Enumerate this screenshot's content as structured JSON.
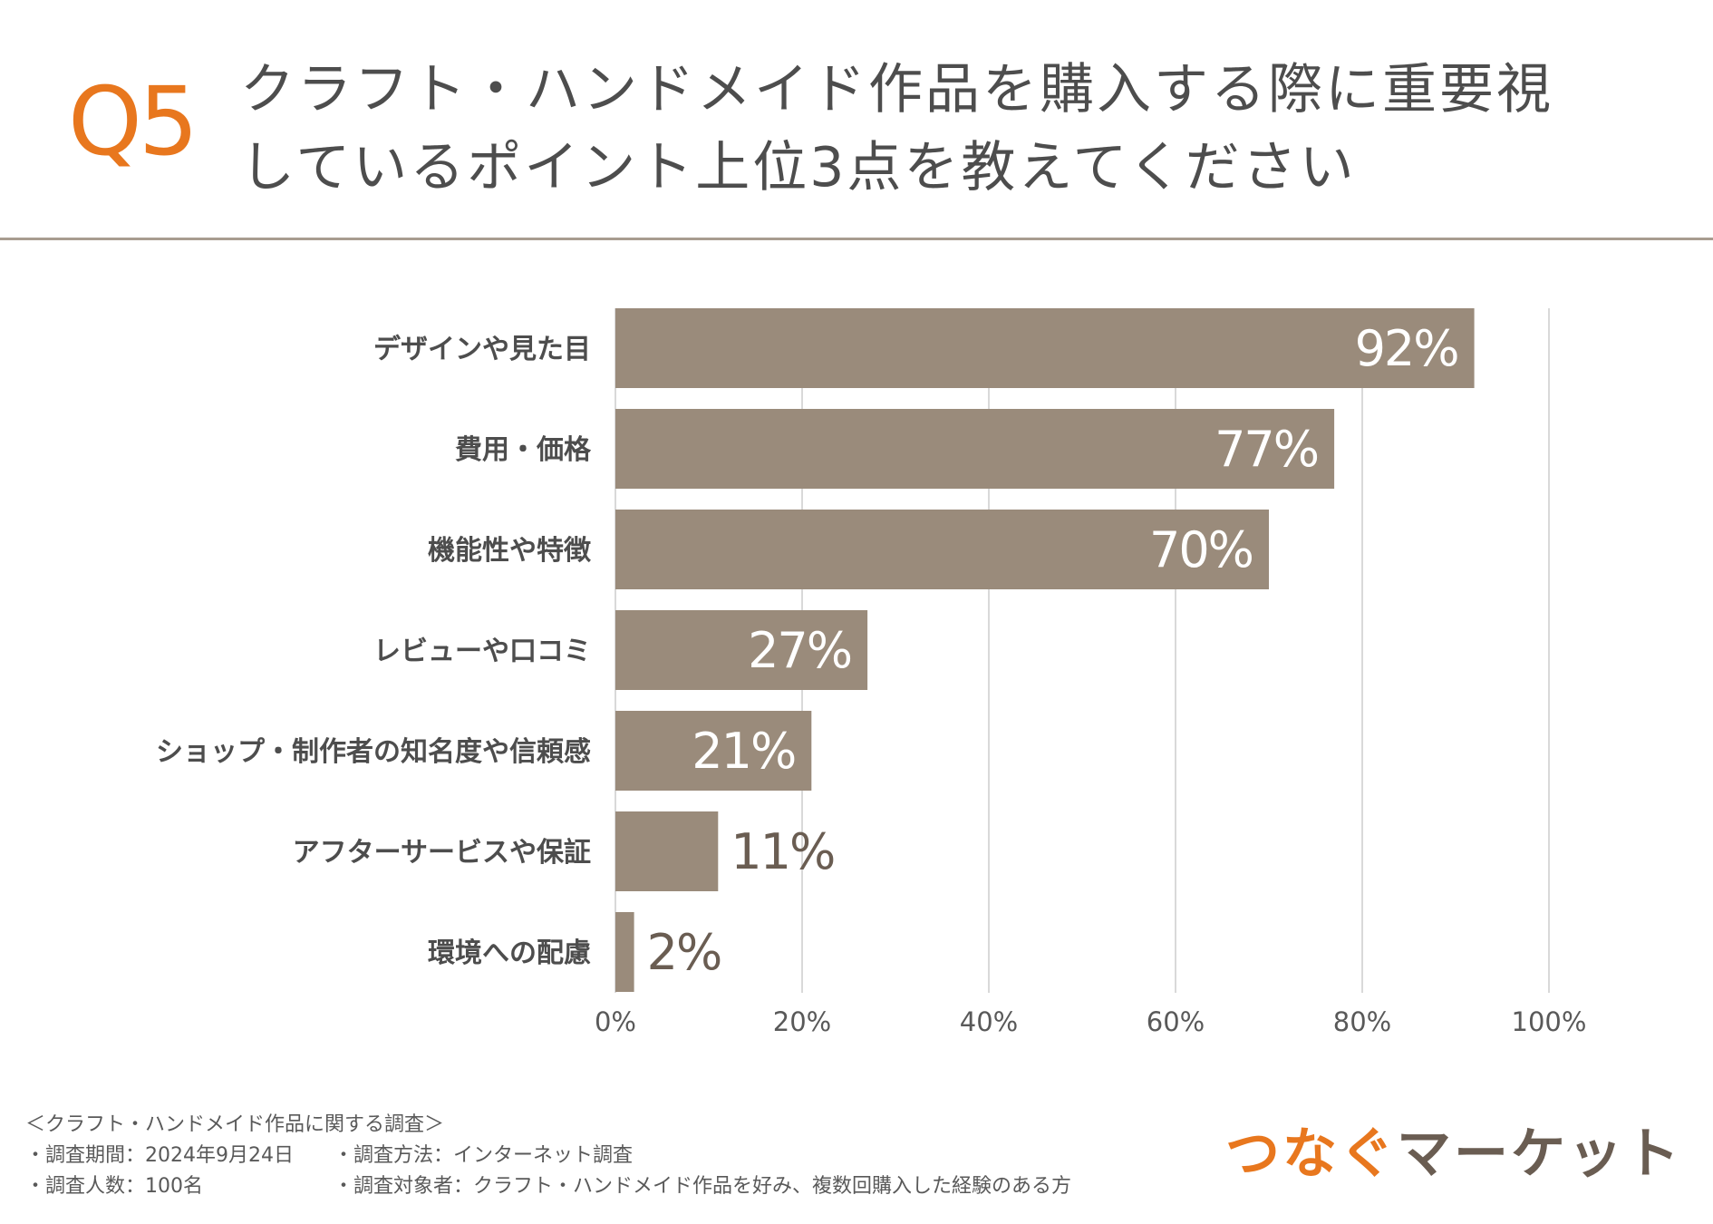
{
  "header": {
    "question_number": "Q5",
    "title_line1": "クラフト・ハンドメイド作品を購入する際に重要視",
    "title_line2": "しているポイント上位3点を教えてください"
  },
  "colors": {
    "accent": "#E8771E",
    "bar": "#9A8B7B",
    "value_inside": "#ffffff",
    "value_outside": "#6a5d52",
    "grid": "#d9d9d9"
  },
  "chart_data": {
    "type": "bar",
    "orientation": "horizontal",
    "categories": [
      "デザインや見た目",
      "費用・価格",
      "機能性や特徴",
      "レビューや口コミ",
      "ショップ・制作者の知名度や信頼感",
      "アフターサービスや保証",
      "環境への配慮"
    ],
    "values": [
      92,
      77,
      70,
      27,
      21,
      11,
      2
    ],
    "value_labels": [
      "92%",
      "77%",
      "70%",
      "27%",
      "21%",
      "11%",
      "2%"
    ],
    "xlim": [
      0,
      100
    ],
    "x_ticks": [
      0,
      20,
      40,
      60,
      80,
      100
    ],
    "x_tick_labels": [
      "0%",
      "20%",
      "40%",
      "60%",
      "80%",
      "100%"
    ],
    "grid": true,
    "title": "",
    "xlabel": "",
    "ylabel": ""
  },
  "footer": {
    "survey_title": "＜クラフト・ハンドメイド作品に関する調査＞",
    "period": "・調査期間：2024年9月24日",
    "method": "・調査方法：インターネット調査",
    "respondents": "・調査人数：100名",
    "target": "・調査対象者：クラフト・ハンドメイド作品を好み、複数回購入した経験のある方"
  },
  "logo": {
    "part1": "つなぐ",
    "part2": "マーケット"
  }
}
